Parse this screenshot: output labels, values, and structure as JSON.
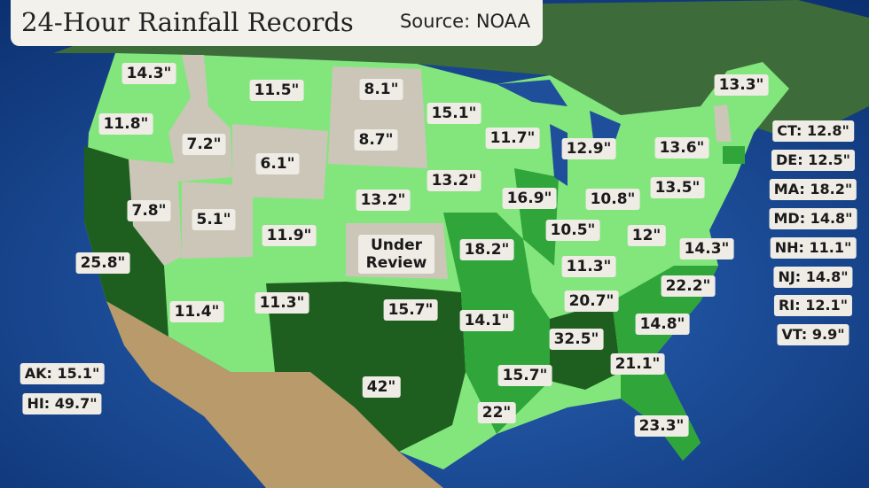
{
  "header": {
    "title": "24-Hour Rainfall Records",
    "source": "Source: NOAA"
  },
  "states": [
    "14.3\"",
    "11.8\"",
    "7.2\"",
    "11.5\"",
    "8.1\"",
    "15.1\"",
    "11.7\"",
    "12.9\"",
    "13.3\"",
    "13.6\"",
    "6.1\"",
    "8.7\"",
    "13.2\"",
    "16.9\"",
    "10.8\"",
    "13.5\"",
    "7.8\"",
    "5.1\"",
    "13.2\"",
    "11.9\"",
    "Under Review",
    "18.2\"",
    "10.5\"",
    "12\"",
    "14.3\"",
    "25.8\"",
    "11.3\"",
    "22.2\"",
    "11.4\"",
    "11.3\"",
    "15.7\"",
    "14.1\"",
    "20.7\"",
    "14.8\"",
    "32.5\"",
    "21.1\"",
    "15.7\"",
    "42\"",
    "22\"",
    "23.3\""
  ],
  "small_states": [
    "CT: 12.8\"",
    "DE: 12.5\"",
    "MA: 18.2\"",
    "MD: 14.8\"",
    "NH: 11.1\"",
    "NJ: 14.8\"",
    "RI: 12.1\"",
    "VT: 9.9\""
  ],
  "other": [
    "AK: 15.1\"",
    "HI: 49.7\""
  ]
}
